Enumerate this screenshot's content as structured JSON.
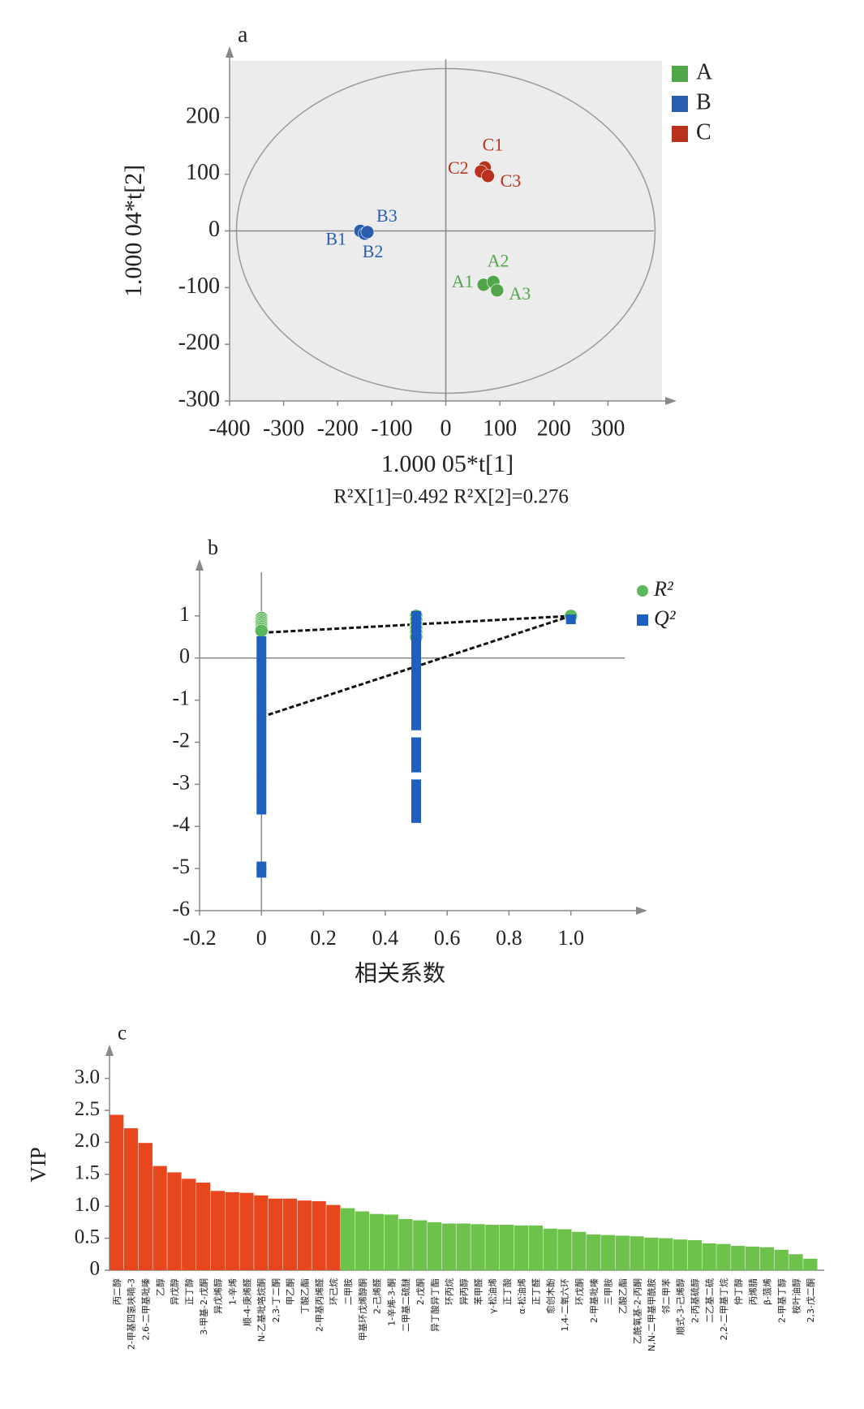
{
  "chart_data": [
    {
      "type": "scatter",
      "title": "a",
      "xlabel": "1.000 05*t[1]",
      "ylabel": "1.000 04*t[2]",
      "annotation": "R²X[1]=0.492  R²X[2]=0.276",
      "xlim": [
        -400,
        400
      ],
      "xticks": [
        -400,
        -300,
        -200,
        -100,
        0,
        100,
        200,
        300
      ],
      "ylim": [
        -300,
        300
      ],
      "yticks": [
        -300,
        -200,
        -100,
        0,
        100,
        200
      ],
      "legend": "right",
      "series": [
        {
          "name": "A",
          "color": "#52a64a",
          "marker": "circle",
          "x": [
            70,
            88,
            95
          ],
          "values": [
            -95,
            -90,
            -105
          ],
          "point_labels": [
            "A1",
            "A2",
            "A3"
          ]
        },
        {
          "name": "B",
          "color": "#2a5db0",
          "marker": "circle",
          "x": [
            -158,
            -150,
            -145
          ],
          "values": [
            0,
            -5,
            -2
          ],
          "point_labels": [
            "B1",
            "B2",
            "B3"
          ]
        },
        {
          "name": "C",
          "color": "#b8321e",
          "marker": "circle",
          "x": [
            72,
            65,
            78
          ],
          "values": [
            112,
            105,
            97
          ],
          "point_labels": [
            "C1",
            "C2",
            "C3"
          ]
        }
      ]
    },
    {
      "type": "scatter",
      "title": "b",
      "xlabel": "相关系数",
      "xlim": [
        -0.2,
        1.2
      ],
      "xticks": [
        -0.2,
        0,
        0.2,
        0.4,
        0.6,
        0.8,
        {
          "value": 1,
          "label": "1.0"
        }
      ],
      "ylim": [
        -6,
        2
      ],
      "yticks": [
        -6,
        -5,
        -4,
        -3,
        -2,
        -1,
        0,
        1
      ],
      "legend": "right",
      "series": [
        {
          "name": "R²",
          "color": "#5cb85c",
          "marker": "circle",
          "x": [
            0,
            0,
            0,
            0,
            0,
            0,
            0,
            0.5,
            0.5,
            0.5,
            0.5,
            0.5,
            0.5,
            1
          ],
          "values": [
            0.95,
            0.9,
            0.85,
            0.8,
            0.75,
            0.7,
            0.65,
            1,
            0.9,
            0.8,
            0.7,
            0.6,
            0.5,
            1
          ],
          "trend_x": [
            0,
            1
          ],
          "trend_values": [
            0.6,
            1
          ]
        },
        {
          "name": "Q²",
          "color": "#1f5fbf",
          "marker": "square",
          "x": [
            0,
            0,
            0,
            0,
            0,
            0,
            0,
            0,
            0,
            0,
            0,
            0,
            0,
            0,
            0,
            0,
            0,
            0,
            0,
            0,
            0,
            0,
            0,
            0.5,
            0.5,
            0.5,
            0.5,
            0.5,
            0.5,
            0.5,
            0.5,
            0.5,
            0.5,
            0.5,
            0.5,
            0.5,
            0.5,
            0.5,
            0.5,
            0.5,
            0.5,
            0.5,
            0.5,
            0.5,
            0.5,
            0.5,
            1
          ],
          "values": [
            0.4,
            0.2,
            0,
            -0.2,
            -0.4,
            -0.6,
            -0.8,
            -1,
            -1.2,
            -1.4,
            -1.6,
            -1.8,
            -2,
            -2.2,
            -2.4,
            -2.6,
            -2.8,
            -3,
            -3.2,
            -3.4,
            -3.6,
            -4.95,
            -5.1,
            1,
            0.8,
            0.6,
            0.4,
            0.2,
            0,
            -0.2,
            -0.4,
            -0.6,
            -0.8,
            -1,
            -1.2,
            -1.4,
            -1.6,
            -2,
            -2.2,
            -2.4,
            -2.6,
            -3,
            -3.2,
            -3.4,
            -3.6,
            -3.8,
            0.92
          ],
          "trend_x": [
            0,
            1
          ],
          "trend_values": [
            -1.4,
            1
          ]
        }
      ]
    },
    {
      "type": "bar",
      "title": "c",
      "ylabel": "VIP",
      "ylim": [
        0,
        3.3
      ],
      "yticks": [
        0,
        0.5,
        {
          "value": 1,
          "label": "1.0"
        },
        1.5,
        {
          "value": 2,
          "label": "2.0"
        },
        2.5,
        {
          "value": 3,
          "label": "3.0"
        }
      ],
      "categories": [
        "丙二醇",
        "2-甲基四氢呋喃-3",
        "2,6-二甲基吡嗪",
        "乙醇",
        "异戊醇",
        "正丁醇",
        "3-甲基-2-戊酮",
        "异戊烯醇",
        "1-辛烯",
        "顺-4-庚烯醛",
        "N-乙基吡咯烷酮",
        "2,3-丁二酮",
        "甲乙酮",
        "丁酸乙酯",
        "2-甲基丙烯醛",
        "环己烷",
        "二甲胺",
        "甲基环戊烯醇酮",
        "2-己烯醛",
        "1-辛烯-3-酮",
        "二甲基二硫醚",
        "2-戊酮",
        "异丁酸异丁酯",
        "环丙烷",
        "异丙醇",
        "苯甲醛",
        "γ-松油烯",
        "正丁酸",
        "α-松油烯",
        "正丁醛",
        "愈创木酚",
        "1,4-二氧六环",
        "环戊酮",
        "2-甲基吡嗪",
        "三甲胺",
        "乙酸乙酯",
        "乙酰氧基-2-丙酮",
        "N,N-二甲基甲酰胺",
        "邻二甲苯",
        "顺式-3-己烯醇",
        "2-丙基硫醇",
        "二乙基二硫",
        "2,2-二甲基丁烷",
        "仲丁醇",
        "丙烯腈",
        "β-蒎烯",
        "2-甲基丁醇",
        "桉叶油醇",
        "2,3-戊二酮"
      ],
      "values": [
        2.43,
        2.22,
        1.99,
        1.63,
        1.53,
        1.43,
        1.37,
        1.24,
        1.22,
        1.21,
        1.17,
        1.12,
        1.12,
        1.09,
        1.08,
        1.02,
        0.97,
        0.92,
        0.88,
        0.87,
        0.8,
        0.78,
        0.75,
        0.73,
        0.73,
        0.72,
        0.71,
        0.71,
        0.7,
        0.7,
        0.65,
        0.64,
        0.6,
        0.56,
        0.55,
        0.54,
        0.53,
        0.51,
        0.5,
        0.48,
        0.47,
        0.42,
        0.41,
        0.38,
        0.37,
        0.36,
        0.32,
        0.25,
        0.18
      ],
      "colors": [
        "#e8471e",
        "#e8471e",
        "#e8471e",
        "#e8471e",
        "#e8471e",
        "#e8471e",
        "#e8471e",
        "#e8471e",
        "#e8471e",
        "#e8471e",
        "#e8471e",
        "#e8471e",
        "#e8471e",
        "#e8471e",
        "#e8471e",
        "#e8471e",
        "#6cc24a",
        "#6cc24a",
        "#6cc24a",
        "#6cc24a",
        "#6cc24a",
        "#6cc24a",
        "#6cc24a",
        "#6cc24a",
        "#6cc24a",
        "#6cc24a",
        "#6cc24a",
        "#6cc24a",
        "#6cc24a",
        "#6cc24a",
        "#6cc24a",
        "#6cc24a",
        "#6cc24a",
        "#6cc24a",
        "#6cc24a",
        "#6cc24a",
        "#6cc24a",
        "#6cc24a",
        "#6cc24a",
        "#6cc24a",
        "#6cc24a",
        "#6cc24a",
        "#6cc24a",
        "#6cc24a",
        "#6cc24a",
        "#6cc24a",
        "#6cc24a",
        "#6cc24a",
        "#6cc24a"
      ]
    }
  ]
}
